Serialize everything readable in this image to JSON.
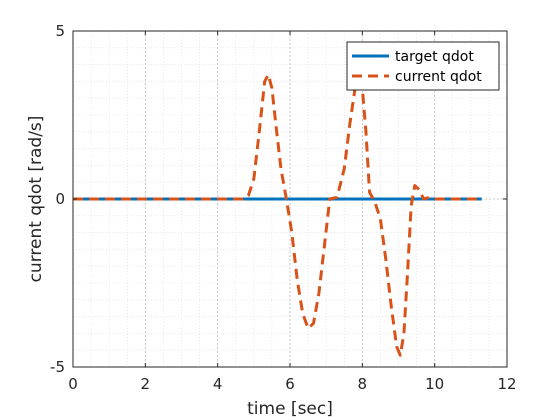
{
  "chart_data": {
    "type": "line",
    "title": "",
    "xlabel": "time [sec]",
    "ylabel": "current qdot [rad/s]",
    "xlim": [
      0,
      12
    ],
    "ylim": [
      -5,
      5
    ],
    "x_ticks": [
      0,
      2,
      4,
      6,
      8,
      10,
      12
    ],
    "y_ticks": [
      -5,
      0,
      5
    ],
    "x_tick_labels": [
      "0",
      "2",
      "4",
      "6",
      "8",
      "10",
      "12"
    ],
    "y_tick_labels": [
      "-5",
      "0",
      "5"
    ],
    "grid": true,
    "minor_grid": true,
    "legend_position": "top-right",
    "series": [
      {
        "name": "target qdot",
        "color": "#0072BD",
        "style": "solid",
        "x": [
          0,
          11.3
        ],
        "y": [
          0,
          0
        ]
      },
      {
        "name": "current qdot",
        "color": "#D95319",
        "style": "dashed",
        "x": [
          0,
          4.7,
          4.85,
          5.0,
          5.15,
          5.3,
          5.4,
          5.5,
          5.6,
          5.75,
          5.9,
          6.05,
          6.2,
          6.35,
          6.5,
          6.65,
          6.8,
          6.95,
          7.1,
          7.3,
          7.5,
          7.65,
          7.8,
          7.9,
          8.0,
          8.1,
          8.2,
          8.35,
          8.5,
          8.65,
          8.8,
          8.95,
          9.05,
          9.15,
          9.25,
          9.35,
          9.45,
          9.55,
          9.7,
          9.85,
          10.0,
          11.3
        ],
        "y": [
          0,
          0,
          0.1,
          0.6,
          2.0,
          3.5,
          3.7,
          3.3,
          2.3,
          0.9,
          0,
          -1.0,
          -2.4,
          -3.4,
          -3.85,
          -3.7,
          -2.8,
          -1.4,
          0,
          0.05,
          0.9,
          2.2,
          3.3,
          3.55,
          3.3,
          2.0,
          0.2,
          -0.1,
          -0.6,
          -1.8,
          -3.2,
          -4.4,
          -4.65,
          -4.0,
          -2.2,
          -0.2,
          0.4,
          0.3,
          0,
          0.05,
          0,
          0
        ]
      }
    ]
  }
}
